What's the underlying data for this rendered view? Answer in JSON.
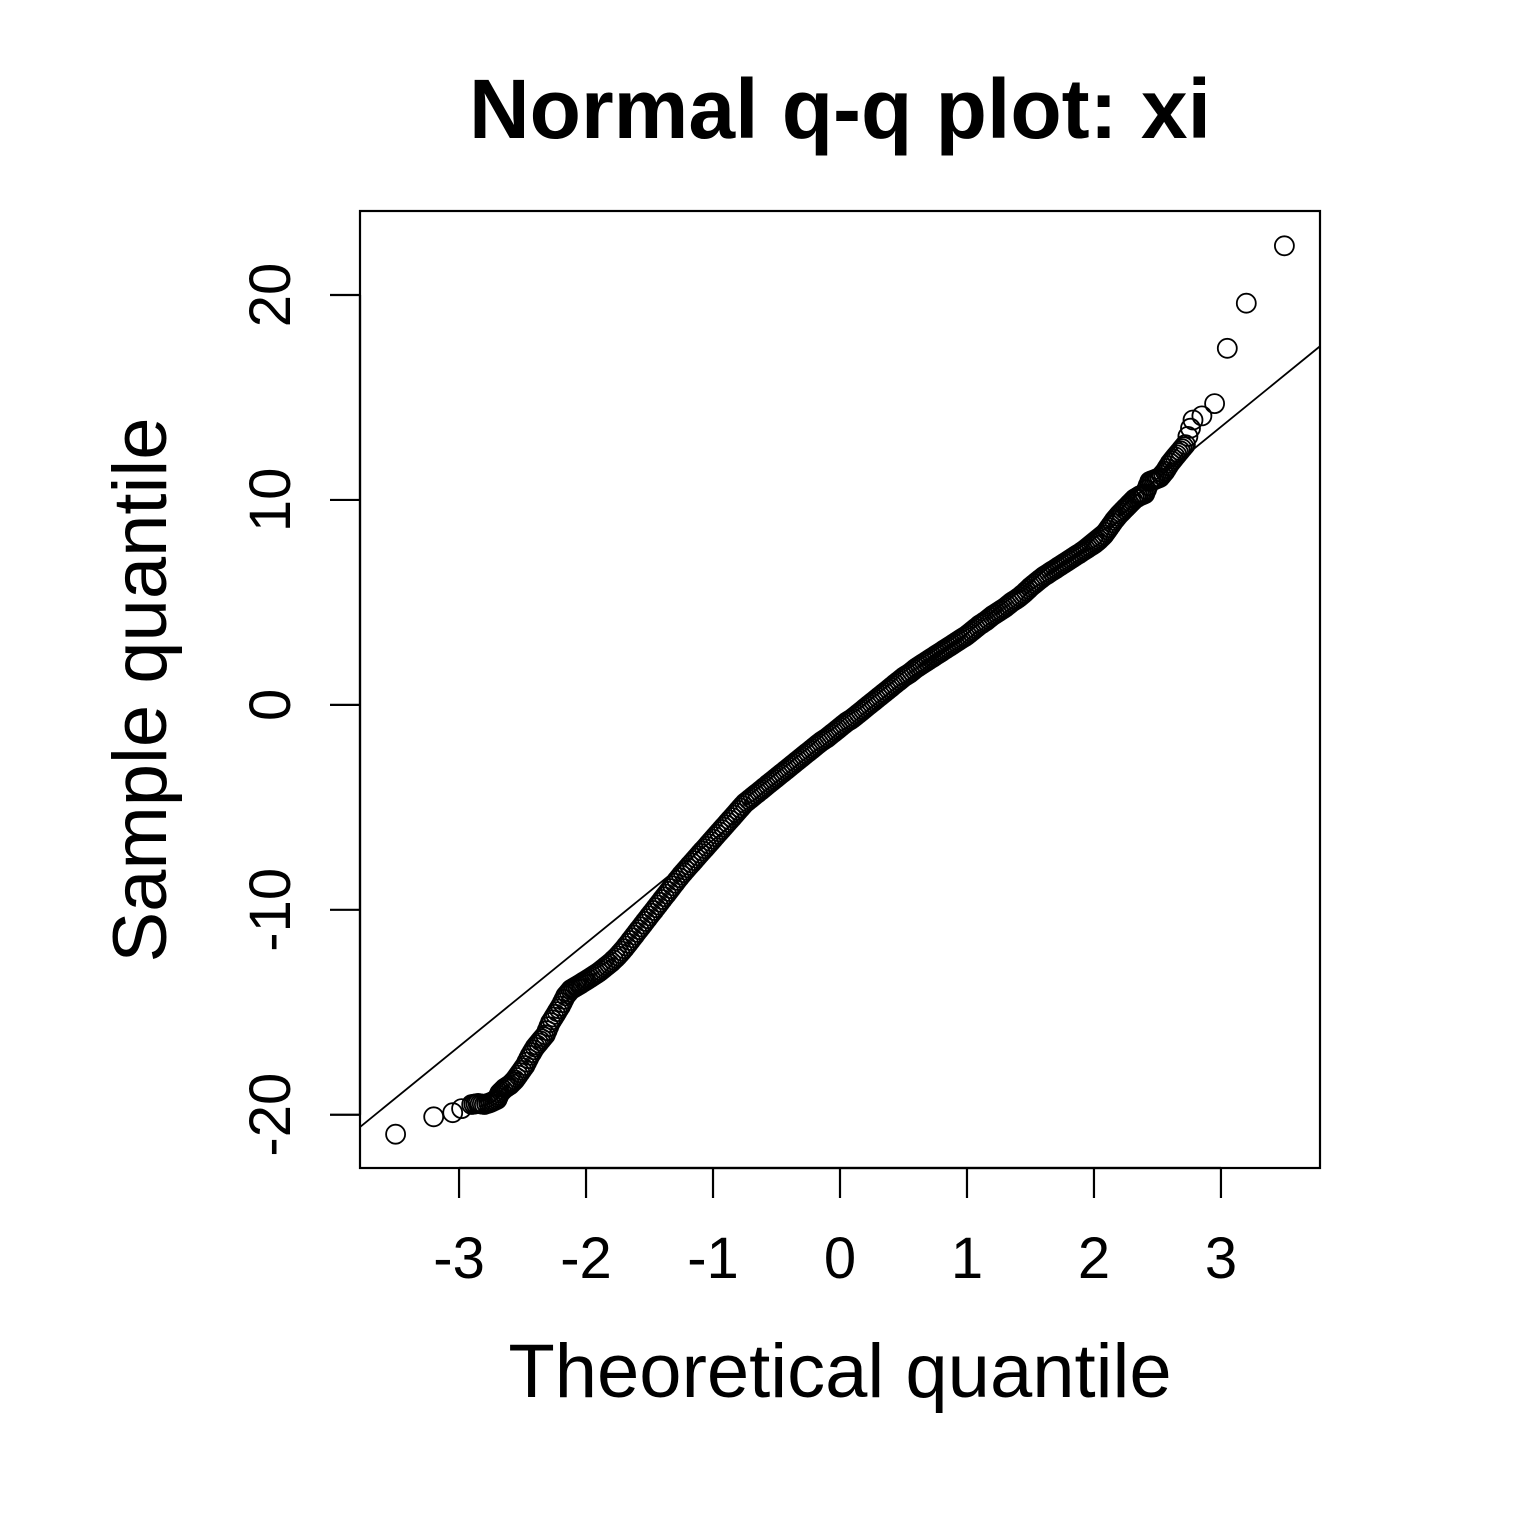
{
  "chart_data": {
    "type": "scatter",
    "title": "Normal q-q plot: xi",
    "xlabel": "Theoretical quantile",
    "ylabel": "Sample quantile",
    "xlim": [
      -3.78,
      3.78
    ],
    "ylim": [
      -22.6,
      24.1
    ],
    "x_ticks": [
      -3,
      -2,
      -1,
      0,
      1,
      2,
      3
    ],
    "x_tick_labels": [
      "-3",
      "-2",
      "-1",
      "0",
      "1",
      "2",
      "3"
    ],
    "y_ticks": [
      -20,
      -10,
      0,
      10,
      20
    ],
    "y_tick_labels": [
      "-20",
      "-10",
      "0",
      "10",
      "20"
    ],
    "grid": false,
    "legend": "none",
    "reference_line": {
      "x": [
        -3.78,
        3.78
      ],
      "y": [
        -20.6,
        17.5
      ]
    },
    "series": [
      {
        "marker": "open-circle",
        "points": [
          [
            -3.5,
            -20.95
          ],
          [
            -3.2,
            -20.1
          ],
          [
            -3.05,
            -19.9
          ],
          [
            -2.98,
            -19.7
          ],
          [
            -2.9,
            -19.5
          ],
          [
            -2.85,
            -19.45
          ],
          [
            -2.8,
            -19.5
          ],
          [
            -2.75,
            -19.4
          ],
          [
            -2.7,
            -19.25
          ],
          [
            -2.68,
            -18.95
          ],
          [
            -2.64,
            -18.7
          ],
          [
            -2.6,
            -18.55
          ],
          [
            -2.56,
            -18.3
          ],
          [
            -2.52,
            -17.95
          ],
          [
            -2.48,
            -17.6
          ],
          [
            -2.44,
            -17.1
          ],
          [
            -2.4,
            -16.7
          ],
          [
            -2.36,
            -16.4
          ],
          [
            -2.32,
            -16.1
          ],
          [
            -2.28,
            -15.5
          ],
          [
            -2.24,
            -15.1
          ],
          [
            -2.2,
            -14.7
          ],
          [
            -2.16,
            -14.2
          ],
          [
            -2.12,
            -13.9
          ],
          [
            -2.08,
            -13.75
          ],
          [
            -2.04,
            -13.6
          ],
          [
            -2.0,
            -13.45
          ],
          [
            -1.95,
            -13.25
          ],
          [
            -1.9,
            -13.05
          ],
          [
            -1.85,
            -12.8
          ],
          [
            -1.8,
            -12.55
          ],
          [
            -1.75,
            -12.25
          ],
          [
            -1.7,
            -11.9
          ],
          [
            -1.65,
            -11.5
          ],
          [
            -1.6,
            -11.1
          ],
          [
            -1.55,
            -10.7
          ],
          [
            -1.5,
            -10.3
          ],
          [
            -1.45,
            -9.9
          ],
          [
            -1.4,
            -9.5
          ],
          [
            -1.35,
            -9.1
          ],
          [
            -1.3,
            -8.7
          ],
          [
            -1.25,
            -8.3
          ],
          [
            -1.2,
            -7.95
          ],
          [
            -1.15,
            -7.6
          ],
          [
            -1.1,
            -7.25
          ],
          [
            -1.05,
            -6.9
          ],
          [
            -1.0,
            -6.55
          ],
          [
            -0.95,
            -6.2
          ],
          [
            -0.9,
            -5.85
          ],
          [
            -0.85,
            -5.5
          ],
          [
            -0.8,
            -5.15
          ],
          [
            -0.75,
            -4.8
          ],
          [
            -0.7,
            -4.55
          ],
          [
            -0.65,
            -4.3
          ],
          [
            -0.6,
            -4.05
          ],
          [
            -0.55,
            -3.8
          ],
          [
            -0.5,
            -3.55
          ],
          [
            -0.45,
            -3.3
          ],
          [
            -0.4,
            -3.05
          ],
          [
            -0.35,
            -2.8
          ],
          [
            -0.3,
            -2.55
          ],
          [
            -0.25,
            -2.3
          ],
          [
            -0.2,
            -2.05
          ],
          [
            -0.15,
            -1.8
          ],
          [
            -0.1,
            -1.6
          ],
          [
            -0.05,
            -1.35
          ],
          [
            0.0,
            -1.1
          ],
          [
            0.05,
            -0.85
          ],
          [
            0.1,
            -0.65
          ],
          [
            0.15,
            -0.4
          ],
          [
            0.2,
            -0.15
          ],
          [
            0.25,
            0.1
          ],
          [
            0.3,
            0.35
          ],
          [
            0.35,
            0.6
          ],
          [
            0.4,
            0.85
          ],
          [
            0.45,
            1.1
          ],
          [
            0.5,
            1.35
          ],
          [
            0.55,
            1.55
          ],
          [
            0.6,
            1.8
          ],
          [
            0.65,
            2.0
          ],
          [
            0.7,
            2.2
          ],
          [
            0.75,
            2.4
          ],
          [
            0.8,
            2.6
          ],
          [
            0.85,
            2.8
          ],
          [
            0.9,
            3.0
          ],
          [
            0.95,
            3.2
          ],
          [
            1.0,
            3.4
          ],
          [
            1.05,
            3.65
          ],
          [
            1.1,
            3.9
          ],
          [
            1.15,
            4.1
          ],
          [
            1.2,
            4.35
          ],
          [
            1.25,
            4.55
          ],
          [
            1.3,
            4.75
          ],
          [
            1.35,
            5.0
          ],
          [
            1.4,
            5.2
          ],
          [
            1.45,
            5.45
          ],
          [
            1.5,
            5.75
          ],
          [
            1.55,
            6.0
          ],
          [
            1.6,
            6.25
          ],
          [
            1.65,
            6.45
          ],
          [
            1.7,
            6.65
          ],
          [
            1.75,
            6.85
          ],
          [
            1.8,
            7.05
          ],
          [
            1.85,
            7.25
          ],
          [
            1.9,
            7.45
          ],
          [
            1.95,
            7.65
          ],
          [
            2.0,
            7.85
          ],
          [
            2.04,
            8.05
          ],
          [
            2.08,
            8.3
          ],
          [
            2.12,
            8.65
          ],
          [
            2.16,
            9.0
          ],
          [
            2.2,
            9.3
          ],
          [
            2.24,
            9.55
          ],
          [
            2.28,
            9.8
          ],
          [
            2.32,
            10.05
          ],
          [
            2.36,
            10.2
          ],
          [
            2.4,
            10.3
          ],
          [
            2.44,
            10.9
          ],
          [
            2.48,
            11.0
          ],
          [
            2.52,
            11.1
          ],
          [
            2.56,
            11.4
          ],
          [
            2.6,
            11.8
          ],
          [
            2.64,
            12.1
          ],
          [
            2.68,
            12.4
          ],
          [
            2.72,
            12.7
          ],
          [
            2.78,
            13.9
          ],
          [
            2.85,
            14.1
          ],
          [
            2.95,
            14.7
          ],
          [
            3.05,
            17.4
          ],
          [
            3.2,
            19.6
          ],
          [
            3.5,
            22.4
          ]
        ]
      }
    ]
  }
}
